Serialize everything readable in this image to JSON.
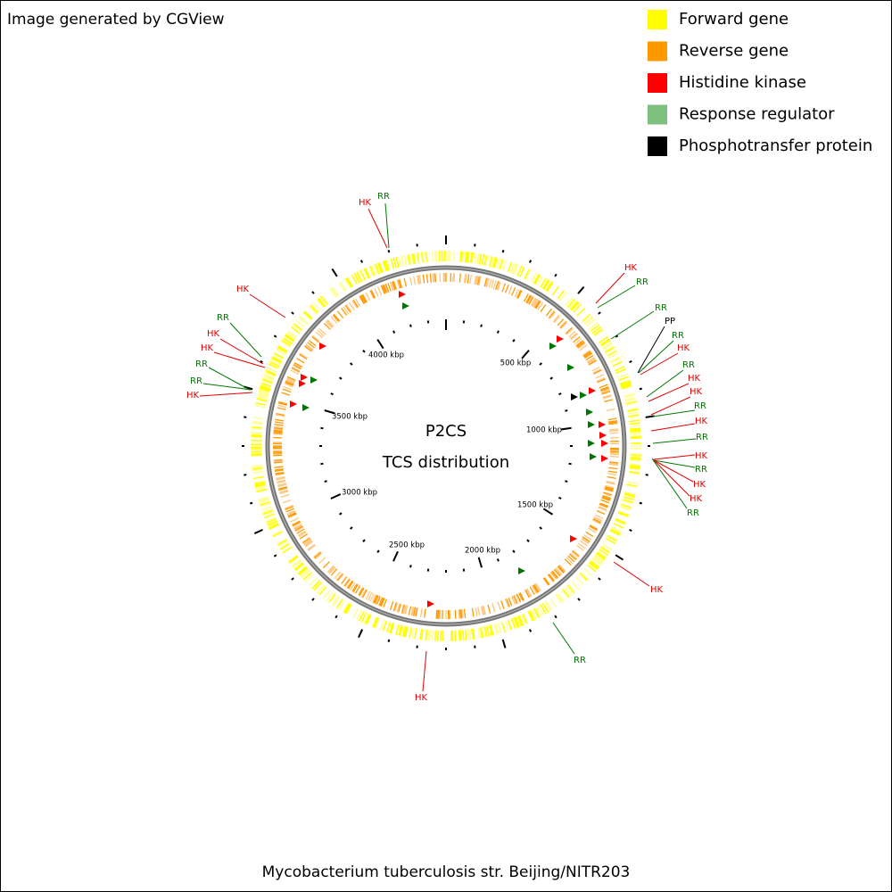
{
  "header": "Image generated by CGView",
  "legend": [
    {
      "label": "Forward gene",
      "color": "#ffff00"
    },
    {
      "label": "Reverse gene",
      "color": "#ff9900"
    },
    {
      "label": "Histidine kinase",
      "color": "#ff0000"
    },
    {
      "label": "Response regulator",
      "color": "#7fbf7f"
    },
    {
      "label": "Phosphotransfer protein",
      "color": "#000000"
    }
  ],
  "center": [
    "P2CS",
    "TCS distribution"
  ],
  "scale_labels": [
    "500 kbp",
    "1000 kbp",
    "1500 kbp",
    "2000 kbp",
    "2500 kbp",
    "3000 kbp",
    "3500 kbp",
    "4000 kbp"
  ],
  "features": [
    {
      "label": "HK",
      "color": "#e00000"
    },
    {
      "label": "RR",
      "color": "#007700"
    },
    {
      "label": "HK",
      "color": "#e00000"
    },
    {
      "label": "RR",
      "color": "#007700"
    },
    {
      "label": "RR",
      "color": "#007700"
    },
    {
      "label": "PP",
      "color": "#000000"
    },
    {
      "label": "RR",
      "color": "#007700"
    },
    {
      "label": "HK",
      "color": "#e00000"
    },
    {
      "label": "RR",
      "color": "#007700"
    },
    {
      "label": "HK",
      "color": "#e00000"
    },
    {
      "label": "HK",
      "color": "#e00000"
    },
    {
      "label": "RR",
      "color": "#007700"
    },
    {
      "label": "HK",
      "color": "#e00000"
    },
    {
      "label": "RR",
      "color": "#007700"
    },
    {
      "label": "HK",
      "color": "#e00000"
    },
    {
      "label": "RR",
      "color": "#007700"
    },
    {
      "label": "HK",
      "color": "#e00000"
    },
    {
      "label": "HK",
      "color": "#e00000"
    },
    {
      "label": "RR",
      "color": "#007700"
    },
    {
      "label": "HK",
      "color": "#e00000"
    },
    {
      "label": "RR",
      "color": "#007700"
    },
    {
      "label": "HK",
      "color": "#e00000"
    },
    {
      "label": "HK",
      "color": "#e00000"
    },
    {
      "label": "RR",
      "color": "#007700"
    },
    {
      "label": "HK",
      "color": "#e00000"
    },
    {
      "label": "HK",
      "color": "#e00000"
    },
    {
      "label": "RR",
      "color": "#007700"
    },
    {
      "label": "RR",
      "color": "#007700"
    },
    {
      "label": "HK",
      "color": "#e00000"
    }
  ],
  "footer": "Mycobacterium tuberculosis str. Beijing/NITR203"
}
